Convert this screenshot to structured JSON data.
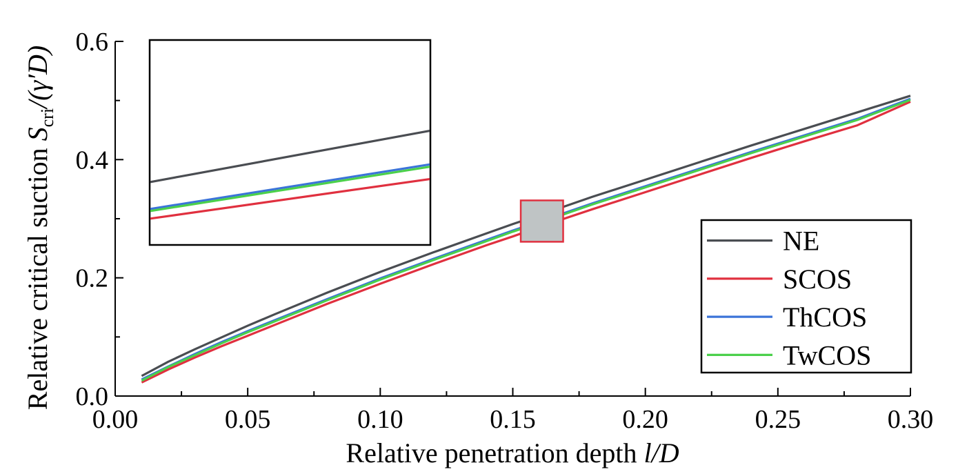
{
  "chart_data": {
    "type": "line",
    "xlabel": "Relative penetration depth l/D",
    "xlabel_parts": {
      "text": "Relative penetration depth ",
      "var": "l/D"
    },
    "ylabel": "Relative critical suction S_cri/(γ'D)",
    "ylabel_parts": {
      "prefix": "Relative critical suction ",
      "S": "S",
      "sub": "cri",
      "rest": "/(γ′D)"
    },
    "xlim": [
      0.0,
      0.3
    ],
    "ylim": [
      0.0,
      0.6
    ],
    "xticks": [
      0.0,
      0.05,
      0.1,
      0.15,
      0.2,
      0.25,
      0.3
    ],
    "xtick_labels": [
      "0.00",
      "0.05",
      "0.10",
      "0.15",
      "0.20",
      "0.25",
      "0.30"
    ],
    "yticks": [
      0.0,
      0.2,
      0.4,
      0.6
    ],
    "ytick_labels": [
      "0.0",
      "0.2",
      "0.4",
      "0.6"
    ],
    "grid": false,
    "legend_position": "lower-right",
    "x": [
      0.01,
      0.02,
      0.03,
      0.04,
      0.05,
      0.06,
      0.08,
      0.1,
      0.12,
      0.14,
      0.15,
      0.16,
      0.18,
      0.2,
      0.22,
      0.24,
      0.25,
      0.26,
      0.28,
      0.3
    ],
    "series": [
      {
        "name": "NE",
        "color": "#4a4d52",
        "values": [
          0.034,
          0.058,
          0.079,
          0.099,
          0.119,
          0.138,
          0.175,
          0.21,
          0.243,
          0.275,
          0.291,
          0.306,
          0.337,
          0.366,
          0.395,
          0.424,
          0.438,
          0.452,
          0.48,
          0.508
        ]
      },
      {
        "name": "SCOS",
        "color": "#e0303f",
        "values": [
          0.023,
          0.045,
          0.065,
          0.084,
          0.102,
          0.12,
          0.156,
          0.19,
          0.223,
          0.255,
          0.27,
          0.286,
          0.316,
          0.345,
          0.374,
          0.403,
          0.417,
          0.431,
          0.458,
          0.498
        ]
      },
      {
        "name": "ThCOS",
        "color": "#3b74d8",
        "values": [
          0.028,
          0.05,
          0.071,
          0.091,
          0.11,
          0.128,
          0.164,
          0.199,
          0.232,
          0.264,
          0.28,
          0.295,
          0.326,
          0.355,
          0.384,
          0.413,
          0.427,
          0.441,
          0.469,
          0.503
        ]
      },
      {
        "name": "TwCOS",
        "color": "#4bd04b",
        "values": [
          0.026,
          0.049,
          0.069,
          0.089,
          0.108,
          0.126,
          0.162,
          0.197,
          0.23,
          0.262,
          0.278,
          0.293,
          0.324,
          0.353,
          0.382,
          0.411,
          0.425,
          0.439,
          0.467,
          0.501
        ]
      }
    ],
    "zoom_box": {
      "x_range": [
        0.153,
        0.169
      ],
      "y_range": [
        0.261,
        0.331
      ],
      "fill": "#bfc4c5",
      "stroke": "#e0303f"
    },
    "inset": {
      "x_range": [
        0.153,
        0.169
      ],
      "y_range": [
        0.261,
        0.331
      ],
      "series_endpoints": [
        {
          "name": "NE",
          "y_start": 0.2825,
          "y_end": 0.3
        },
        {
          "name": "SCOS",
          "y_start": 0.27,
          "y_end": 0.2835
        },
        {
          "name": "ThCOS",
          "y_start": 0.2733,
          "y_end": 0.2885
        },
        {
          "name": "TwCOS",
          "y_start": 0.2726,
          "y_end": 0.2877
        }
      ]
    }
  }
}
